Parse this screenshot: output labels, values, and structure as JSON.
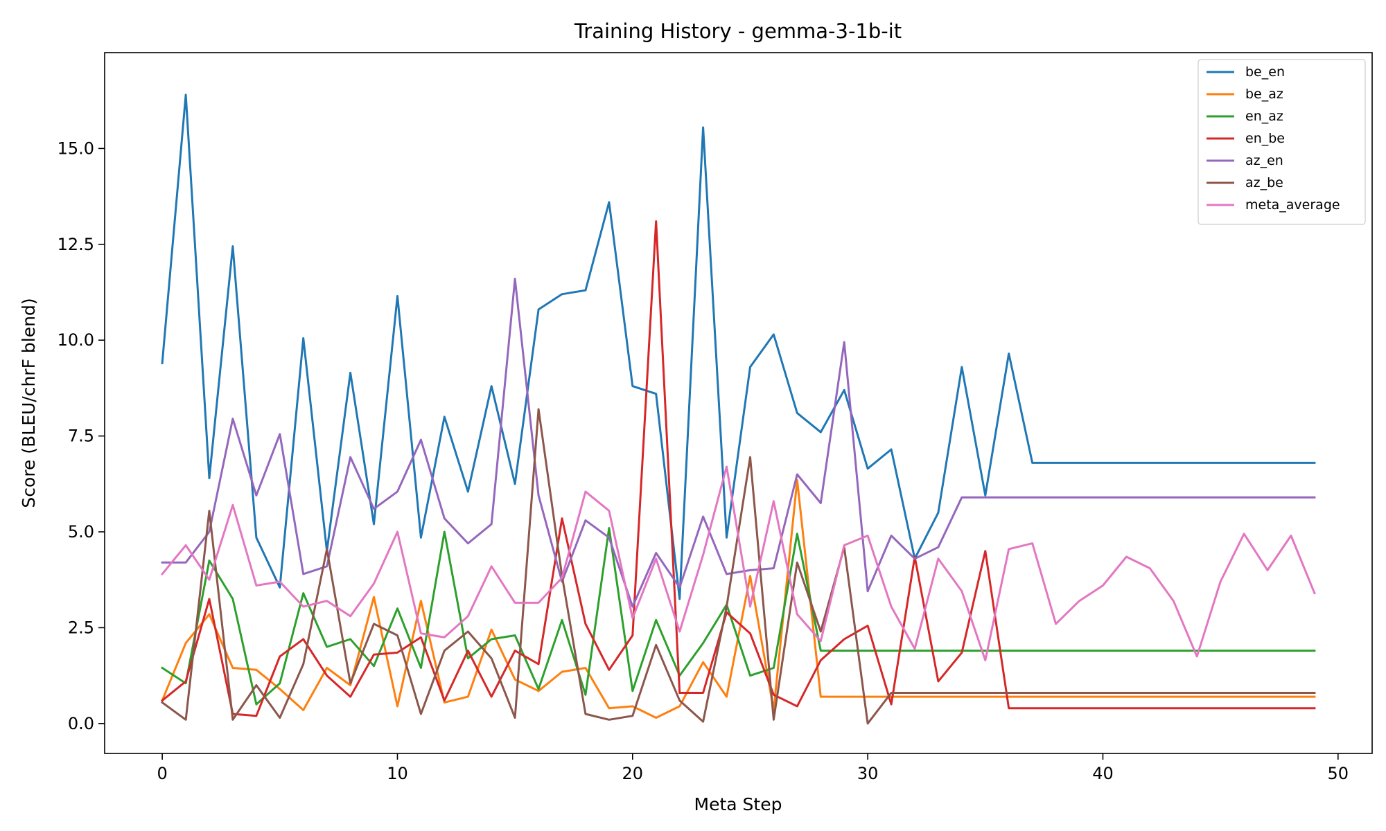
{
  "chart_data": {
    "type": "line",
    "title": "Training History - gemma-3-1b-it",
    "xlabel": "Meta Step",
    "ylabel": "Score (BLEU/chrF blend)",
    "xlim": [
      -2.45,
      51.45
    ],
    "ylim": [
      -0.78,
      17.5
    ],
    "xticks": [
      0,
      10,
      20,
      30,
      40,
      50
    ],
    "xtick_labels": [
      "0",
      "10",
      "20",
      "30",
      "40",
      "50"
    ],
    "yticks": [
      0.0,
      2.5,
      5.0,
      7.5,
      10.0,
      12.5,
      15.0
    ],
    "ytick_labels": [
      "0.0",
      "2.5",
      "5.0",
      "7.5",
      "10.0",
      "12.5",
      "15.0"
    ],
    "grid": false,
    "legend_position": "top-right",
    "series": [
      {
        "name": "be_en",
        "color": "#1f77b4",
        "values": [
          9.4,
          16.4,
          6.4,
          12.45,
          4.85,
          3.55,
          10.05,
          4.5,
          9.15,
          5.2,
          11.15,
          4.85,
          8.0,
          6.05,
          8.8,
          6.25,
          10.8,
          11.2,
          11.3,
          13.6,
          8.8,
          8.6,
          3.25,
          15.55,
          4.85,
          9.3,
          10.15,
          8.1,
          7.6,
          8.7,
          6.65,
          7.15,
          4.3,
          5.5,
          9.3,
          5.95,
          9.65,
          6.8,
          6.8,
          6.8,
          6.8,
          6.8,
          6.8,
          6.8,
          6.8,
          6.8,
          6.8,
          6.8,
          6.8,
          6.8
        ]
      },
      {
        "name": "be_az",
        "color": "#ff7f0e",
        "values": [
          0.6,
          2.1,
          2.85,
          1.45,
          1.4,
          0.9,
          0.35,
          1.45,
          1.0,
          3.3,
          0.45,
          3.2,
          0.55,
          0.7,
          2.45,
          1.15,
          0.85,
          1.35,
          1.45,
          0.4,
          0.45,
          0.15,
          0.45,
          1.6,
          0.7,
          3.85,
          0.35,
          6.35,
          0.7,
          0.7,
          0.7,
          0.7,
          0.7,
          0.7,
          0.7,
          0.7,
          0.7,
          0.7,
          0.7,
          0.7,
          0.7,
          0.7,
          0.7,
          0.7,
          0.7,
          0.7,
          0.7,
          0.7,
          0.7,
          0.7
        ]
      },
      {
        "name": "en_az",
        "color": "#2ca02c",
        "values": [
          1.45,
          1.05,
          4.25,
          3.25,
          0.5,
          1.05,
          3.4,
          2.0,
          2.2,
          1.5,
          3.0,
          1.45,
          5.0,
          1.7,
          2.2,
          2.3,
          0.9,
          2.7,
          0.75,
          5.1,
          0.85,
          2.7,
          1.25,
          2.1,
          3.1,
          1.25,
          1.45,
          4.95,
          1.9,
          1.9,
          1.9,
          1.9,
          1.9,
          1.9,
          1.9,
          1.9,
          1.9,
          1.9,
          1.9,
          1.9,
          1.9,
          1.9,
          1.9,
          1.9,
          1.9,
          1.9,
          1.9,
          1.9,
          1.9,
          1.9
        ]
      },
      {
        "name": "en_be",
        "color": "#d62728",
        "values": [
          0.6,
          1.1,
          3.25,
          0.25,
          0.2,
          1.75,
          2.2,
          1.25,
          0.7,
          1.8,
          1.85,
          2.25,
          0.6,
          1.9,
          0.7,
          1.9,
          1.55,
          5.35,
          2.6,
          1.4,
          2.3,
          13.1,
          0.8,
          0.8,
          2.9,
          2.35,
          0.75,
          0.45,
          1.65,
          2.2,
          2.55,
          0.5,
          4.35,
          1.1,
          1.85,
          4.5,
          0.4,
          0.4,
          0.4,
          0.4,
          0.4,
          0.4,
          0.4,
          0.4,
          0.4,
          0.4,
          0.4,
          0.4,
          0.4,
          0.4
        ]
      },
      {
        "name": "az_en",
        "color": "#9467bd",
        "values": [
          4.2,
          4.2,
          5.0,
          7.95,
          5.95,
          7.55,
          3.9,
          4.1,
          6.95,
          5.6,
          6.05,
          7.4,
          5.35,
          4.7,
          5.2,
          11.6,
          5.95,
          3.7,
          5.3,
          4.85,
          3.05,
          4.45,
          3.55,
          5.4,
          3.9,
          4.0,
          4.05,
          6.5,
          5.75,
          9.95,
          3.45,
          4.9,
          4.3,
          4.6,
          5.9,
          5.9,
          5.9,
          5.9,
          5.9,
          5.9,
          5.9,
          5.9,
          5.9,
          5.9,
          5.9,
          5.9,
          5.9,
          5.9,
          5.9,
          5.9
        ]
      },
      {
        "name": "az_be",
        "color": "#8c564b",
        "values": [
          0.55,
          0.1,
          5.55,
          0.1,
          1.0,
          0.15,
          1.55,
          4.55,
          1.05,
          2.6,
          2.3,
          0.25,
          1.9,
          2.4,
          1.7,
          0.15,
          8.2,
          3.85,
          0.25,
          0.1,
          0.2,
          2.05,
          0.6,
          0.05,
          3.05,
          6.95,
          0.1,
          4.2,
          2.4,
          4.6,
          0.0,
          0.8,
          0.8,
          0.8,
          0.8,
          0.8,
          0.8,
          0.8,
          0.8,
          0.8,
          0.8,
          0.8,
          0.8,
          0.8,
          0.8,
          0.8,
          0.8,
          0.8,
          0.8,
          0.8
        ]
      },
      {
        "name": "meta_average",
        "color": "#e377c2",
        "values": [
          3.9,
          4.65,
          3.75,
          5.7,
          3.6,
          3.7,
          3.05,
          3.2,
          2.8,
          3.65,
          5.0,
          2.35,
          2.25,
          2.8,
          4.1,
          3.15,
          3.15,
          3.8,
          6.05,
          5.55,
          2.75,
          4.3,
          2.4,
          4.4,
          6.7,
          3.05,
          5.8,
          2.85,
          2.15,
          4.65,
          4.9,
          3.05,
          1.95,
          4.3,
          3.45,
          1.65,
          4.55,
          4.7,
          2.6,
          3.2,
          3.6,
          4.35,
          4.05,
          3.2,
          1.75,
          3.7,
          4.95,
          4.0,
          4.9,
          3.4
        ]
      }
    ]
  }
}
